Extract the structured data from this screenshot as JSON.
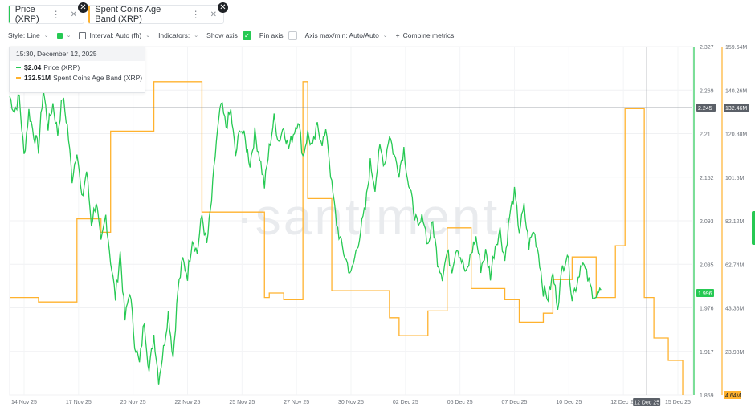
{
  "tabs": [
    {
      "label": "Price (XRP)",
      "color": "#26c953"
    },
    {
      "label": "Spent Coins Age Band (XRP)",
      "color": "#ffb22e"
    }
  ],
  "toolbar": {
    "style": "Style: Line",
    "interval": "Interval: Auto (fh)",
    "indicators": "Indicators:",
    "show_axis": "Show axis",
    "pin_axis": "Pin axis",
    "axis_maxmin": "Axis max/min: Auto/Auto",
    "combine": "Combine metrics"
  },
  "tooltip": {
    "date": "15:30, December 12, 2025",
    "price_value": "$2.04",
    "price_label": "Price (XRP)",
    "band_value": "132.51M",
    "band_label": "Spent Coins Age Band (XRP)"
  },
  "watermark": "·santiment·",
  "chart_data": {
    "type": "line",
    "x_labels": [
      "14 Nov 25",
      "17 Nov 25",
      "20 Nov 25",
      "22 Nov 25",
      "25 Nov 25",
      "27 Nov 25",
      "30 Nov 25",
      "02 Dec 25",
      "05 Dec 25",
      "07 Dec 25",
      "10 Dec 25",
      "12 Dec 25",
      "15 Dec 25"
    ],
    "series": [
      {
        "name": "Price (XRP)",
        "color": "#26c953",
        "axis": "left",
        "ticks": [
          "2.327",
          "2.269",
          "2.21",
          "2.152",
          "2.093",
          "2.035",
          "1.976",
          "1.917",
          "1.859"
        ],
        "ylim": [
          1.859,
          2.327
        ],
        "current_label": "1.996",
        "crosshair_label": "2.245",
        "points": [
          [
            0,
            2.26
          ],
          [
            1,
            2.24
          ],
          [
            2,
            2.26
          ],
          [
            3,
            2.18
          ],
          [
            4,
            2.24
          ],
          [
            5,
            2.21
          ],
          [
            6,
            2.19
          ],
          [
            7,
            2.27
          ],
          [
            8,
            2.22
          ],
          [
            9,
            2.25
          ],
          [
            10,
            2.21
          ],
          [
            11,
            2.26
          ],
          [
            12,
            2.22
          ],
          [
            13,
            2.15
          ],
          [
            14,
            2.19
          ],
          [
            15,
            2.12
          ],
          [
            16,
            2.16
          ],
          [
            17,
            2.09
          ],
          [
            18,
            2.12
          ],
          [
            19,
            2.06
          ],
          [
            20,
            2.1
          ],
          [
            21,
            2.04
          ],
          [
            22,
            1.99
          ],
          [
            23,
            2.05
          ],
          [
            24,
            1.96
          ],
          [
            25,
            2.0
          ],
          [
            26,
            1.93
          ],
          [
            27,
            1.9
          ],
          [
            28,
            1.96
          ],
          [
            29,
            1.89
          ],
          [
            30,
            1.94
          ],
          [
            31,
            1.88
          ],
          [
            32,
            1.92
          ],
          [
            33,
            1.97
          ],
          [
            34,
            1.91
          ],
          [
            35,
            2.0
          ],
          [
            36,
            2.04
          ],
          [
            37,
            2.02
          ],
          [
            38,
            2.07
          ],
          [
            39,
            2.05
          ],
          [
            40,
            2.1
          ],
          [
            41,
            2.06
          ],
          [
            42,
            2.12
          ],
          [
            43,
            2.2
          ],
          [
            44,
            2.25
          ],
          [
            45,
            2.22
          ],
          [
            46,
            2.24
          ],
          [
            47,
            2.18
          ],
          [
            48,
            2.22
          ],
          [
            49,
            2.2
          ],
          [
            50,
            2.17
          ],
          [
            51,
            2.21
          ],
          [
            52,
            2.18
          ],
          [
            53,
            2.14
          ],
          [
            54,
            2.19
          ],
          [
            55,
            2.23
          ],
          [
            56,
            2.2
          ],
          [
            57,
            2.22
          ],
          [
            58,
            2.19
          ],
          [
            59,
            2.21
          ],
          [
            60,
            2.23
          ],
          [
            61,
            2.18
          ],
          [
            62,
            2.21
          ],
          [
            63,
            2.19
          ],
          [
            64,
            2.22
          ],
          [
            65,
            2.2
          ],
          [
            66,
            2.21
          ],
          [
            67,
            2.14
          ],
          [
            68,
            2.09
          ],
          [
            69,
            2.06
          ],
          [
            70,
            2.04
          ],
          [
            71,
            2.02
          ],
          [
            72,
            2.05
          ],
          [
            73,
            2.08
          ],
          [
            74,
            2.11
          ],
          [
            75,
            2.17
          ],
          [
            76,
            2.14
          ],
          [
            77,
            2.19
          ],
          [
            78,
            2.17
          ],
          [
            79,
            2.21
          ],
          [
            80,
            2.18
          ],
          [
            81,
            2.16
          ],
          [
            82,
            2.19
          ],
          [
            83,
            2.14
          ],
          [
            84,
            2.11
          ],
          [
            85,
            2.08
          ],
          [
            86,
            2.1
          ],
          [
            87,
            2.06
          ],
          [
            88,
            2.09
          ],
          [
            89,
            2.04
          ],
          [
            90,
            2.02
          ],
          [
            91,
            2.05
          ],
          [
            92,
            2.03
          ],
          [
            93,
            2.06
          ],
          [
            94,
            2.04
          ],
          [
            95,
            2.02
          ],
          [
            96,
            2.05
          ],
          [
            97,
            2.07
          ],
          [
            98,
            2.03
          ],
          [
            99,
            2.05
          ],
          [
            100,
            2.02
          ],
          [
            101,
            2.06
          ],
          [
            102,
            2.08
          ],
          [
            103,
            2.04
          ],
          [
            104,
            2.1
          ],
          [
            105,
            2.13
          ],
          [
            106,
            2.08
          ],
          [
            107,
            2.11
          ],
          [
            108,
            2.06
          ],
          [
            109,
            2.08
          ],
          [
            110,
            2.05
          ],
          [
            111,
            2.0
          ],
          [
            112,
            1.99
          ],
          [
            113,
            2.02
          ],
          [
            114,
            1.98
          ],
          [
            115,
            2.03
          ],
          [
            116,
            2.05
          ],
          [
            117,
            1.99
          ],
          [
            118,
            2.01
          ],
          [
            119,
            2.04
          ],
          [
            120,
            2.02
          ],
          [
            121,
            2.0
          ],
          [
            122,
            1.99
          ],
          [
            123,
            2.0
          ]
        ]
      },
      {
        "name": "Spent Coins Age Band (XRP)",
        "color": "#ffb22e",
        "axis": "right",
        "ticks": [
          "159.64M",
          "140.26M",
          "120.88M",
          "101.5M",
          "82.12M",
          "62.74M",
          "43.36M",
          "23.98M",
          "4.64M"
        ],
        "ylim": [
          4.64,
          159.64
        ],
        "crosshair_label": "132.46M",
        "points": [
          [
            0,
            48
          ],
          [
            6,
            48
          ],
          [
            6,
            46
          ],
          [
            14,
            46
          ],
          [
            14,
            83
          ],
          [
            19,
            83
          ],
          [
            19,
            77
          ],
          [
            21,
            77
          ],
          [
            21,
            122
          ],
          [
            30,
            122
          ],
          [
            30,
            144
          ],
          [
            40,
            144
          ],
          [
            40,
            86
          ],
          [
            53,
            86
          ],
          [
            53,
            48
          ],
          [
            54,
            48
          ],
          [
            54,
            50
          ],
          [
            57,
            50
          ],
          [
            57,
            47
          ],
          [
            61,
            47
          ],
          [
            61,
            144
          ],
          [
            62,
            144
          ],
          [
            62,
            92
          ],
          [
            67,
            92
          ],
          [
            67,
            51
          ],
          [
            79,
            51
          ],
          [
            79,
            39
          ],
          [
            81,
            39
          ],
          [
            81,
            31
          ],
          [
            87,
            31
          ],
          [
            87,
            42
          ],
          [
            91,
            42
          ],
          [
            91,
            79
          ],
          [
            96,
            79
          ],
          [
            96,
            52
          ],
          [
            98,
            52
          ],
          [
            98,
            52
          ],
          [
            103,
            52
          ],
          [
            103,
            47
          ],
          [
            106,
            47
          ],
          [
            106,
            37
          ],
          [
            111,
            37
          ],
          [
            111,
            41
          ],
          [
            113,
            41
          ],
          [
            113,
            56
          ],
          [
            117,
            56
          ],
          [
            117,
            66
          ],
          [
            121,
            66
          ],
          [
            121,
            66
          ],
          [
            122,
            66
          ],
          [
            122,
            48
          ],
          [
            126,
            48
          ],
          [
            126,
            71
          ],
          [
            128,
            71
          ],
          [
            128,
            132
          ],
          [
            131,
            132
          ],
          [
            131,
            132
          ],
          [
            132,
            132
          ],
          [
            132,
            48
          ],
          [
            134,
            48
          ],
          [
            134,
            30
          ],
          [
            137,
            30
          ],
          [
            137,
            20
          ],
          [
            140,
            20
          ],
          [
            140,
            4.64
          ]
        ]
      }
    ],
    "crosshair": {
      "date_label": "12 Dec 25"
    },
    "grid": true,
    "legend": "top-left tabs"
  }
}
